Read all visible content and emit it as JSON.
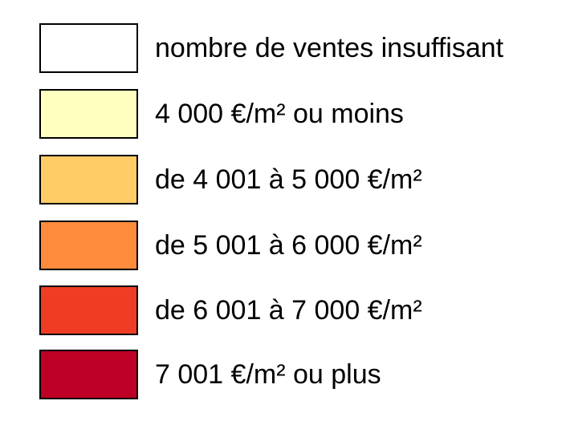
{
  "legend": {
    "items": [
      {
        "label": "nombre de ventes insuffisant",
        "color": "#ffffff"
      },
      {
        "label": "4 000 €/m² ou moins",
        "color": "#ffffc0"
      },
      {
        "label": "de 4 001 à 5 000 €/m²",
        "color": "#ffcc66"
      },
      {
        "label": "de 5 001 à 6 000 €/m²",
        "color": "#ff8c3c"
      },
      {
        "label": "de 6 001 à 7 000 €/m²",
        "color": "#f03c24"
      },
      {
        "label": "7 001 €/m² ou plus",
        "color": "#bf0026"
      }
    ]
  }
}
